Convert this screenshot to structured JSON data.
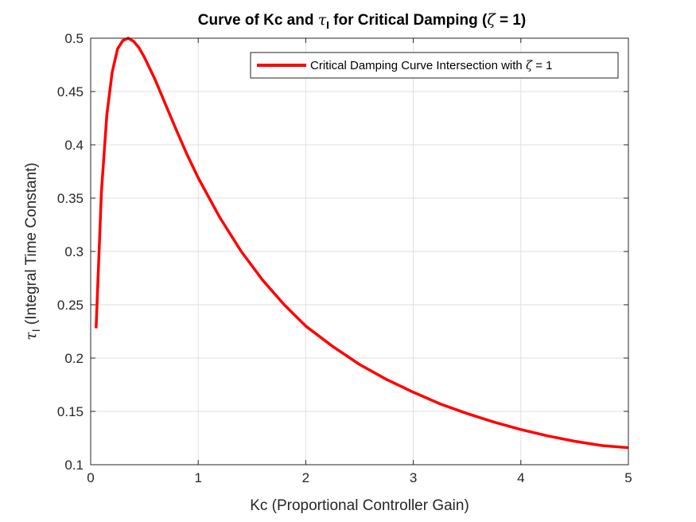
{
  "chart_data": {
    "type": "line",
    "title": {
      "prefix": "Curve of Kc and ",
      "tau": "τ",
      "tau_sub": "I",
      "mid": " for Critical Damping (",
      "zeta": "ζ",
      "suffix": " = 1)"
    },
    "xlabel": "Kc (Proportional Controller Gain)",
    "ylabel": {
      "tau": "τ",
      "tau_sub": "I",
      "rest": " (Integral Time Constant)"
    },
    "xlim": [
      0,
      5
    ],
    "ylim": [
      0.1,
      0.5
    ],
    "xticks": [
      0,
      1,
      2,
      3,
      4,
      5
    ],
    "xtick_labels": [
      "0",
      "1",
      "2",
      "3",
      "4",
      "5"
    ],
    "yticks": [
      0.1,
      0.15,
      0.2,
      0.25,
      0.3,
      0.35,
      0.4,
      0.45,
      0.5
    ],
    "ytick_labels": [
      "0.1",
      "0.15",
      "0.2",
      "0.25",
      "0.3",
      "0.35",
      "0.4",
      "0.45",
      "0.5"
    ],
    "grid": true,
    "legend_position": "top-right",
    "series": [
      {
        "name": {
          "prefix": "Critical Damping Curve Intersection with ",
          "zeta": "ζ",
          "suffix": " = 1"
        },
        "color": "#ff0000",
        "x": [
          0.05,
          0.1,
          0.15,
          0.2,
          0.25,
          0.3,
          0.35,
          0.4,
          0.45,
          0.5,
          0.6,
          0.7,
          0.8,
          0.9,
          1.0,
          1.2,
          1.4,
          1.6,
          1.8,
          2.0,
          2.25,
          2.5,
          2.75,
          3.0,
          3.25,
          3.5,
          3.75,
          4.0,
          4.25,
          4.5,
          4.75,
          5.0
        ],
        "y": [
          0.228,
          0.356,
          0.428,
          0.468,
          0.49,
          0.498,
          0.5,
          0.497,
          0.491,
          0.482,
          0.461,
          0.437,
          0.413,
          0.39,
          0.369,
          0.332,
          0.3,
          0.273,
          0.25,
          0.23,
          0.211,
          0.194,
          0.18,
          0.168,
          0.157,
          0.148,
          0.14,
          0.133,
          0.127,
          0.122,
          0.118,
          0.116
        ]
      }
    ]
  },
  "colors": {
    "axis": "#262626",
    "grid": "#dfdfdf",
    "line": "#ff0000"
  }
}
